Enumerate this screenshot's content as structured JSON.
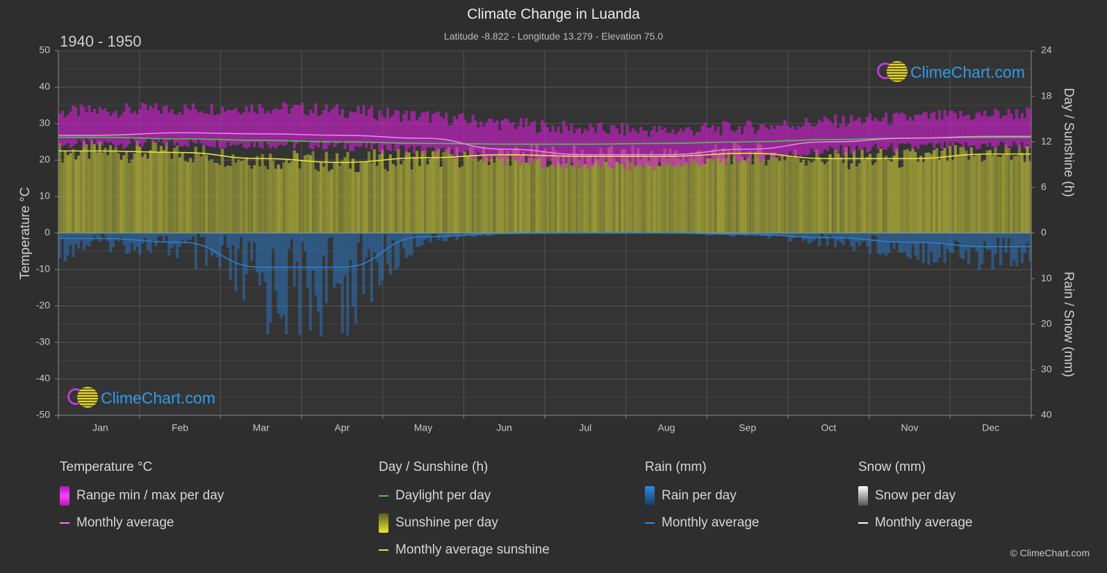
{
  "header": {
    "title": "Climate Change in Luanda",
    "subtitle": "Latitude -8.822 - Longitude 13.279 - Elevation 75.0",
    "period": "1940 - 1950"
  },
  "logo": {
    "text": "ClimeChart.com"
  },
  "copyright": "© ClimeChart.com",
  "colors": {
    "background": "#2e2e2e",
    "temp_range": "#d020d0",
    "temp_avg": "#f080f0",
    "daylight": "#44cc44",
    "sunshine_fill": "#a8a838",
    "sunshine_avg": "#e6e632",
    "rain": "#2b7fd4",
    "snow": "#ffffff",
    "brand": "#2f9be8"
  },
  "legend": {
    "temperature": {
      "heading": "Temperature °C",
      "range": "Range min / max per day",
      "avg": "Monthly average"
    },
    "sunshine": {
      "heading": "Day / Sunshine (h)",
      "daylight": "Daylight per day",
      "sunshine": "Sunshine per day",
      "avg": "Monthly average sunshine"
    },
    "rain": {
      "heading": "Rain (mm)",
      "per_day": "Rain per day",
      "avg": "Monthly average"
    },
    "snow": {
      "heading": "Snow (mm)",
      "per_day": "Snow per day",
      "avg": "Monthly average"
    }
  },
  "chart_data": {
    "type": "area",
    "title": "Climate Change in Luanda",
    "categories": [
      "Jan",
      "Feb",
      "Mar",
      "Apr",
      "May",
      "Jun",
      "Jul",
      "Aug",
      "Sep",
      "Oct",
      "Nov",
      "Dec"
    ],
    "axes": {
      "left": {
        "label": "Temperature °C",
        "min": -50,
        "max": 50,
        "ticks": [
          50,
          40,
          30,
          20,
          10,
          0,
          -10,
          -20,
          -30,
          -40,
          -50
        ]
      },
      "right_top": {
        "label": "Day / Sunshine (h)",
        "min": 0,
        "max": 24,
        "ticks": [
          24,
          18,
          12,
          6,
          0
        ]
      },
      "right_bottom": {
        "label": "Rain / Snow (mm)",
        "min": 0,
        "max": 40,
        "ticks": [
          0,
          10,
          20,
          30,
          40
        ]
      }
    },
    "grid": true,
    "series": [
      {
        "name": "Range min / max per day",
        "kind": "band",
        "min": [
          24.5,
          24.8,
          24.5,
          24.0,
          22.8,
          20.0,
          18.5,
          18.5,
          20.5,
          22.5,
          23.5,
          24.0
        ],
        "max": [
          33.5,
          34.0,
          34.5,
          33.5,
          32.0,
          30.0,
          28.5,
          28.0,
          29.0,
          30.5,
          31.5,
          32.5
        ]
      },
      {
        "name": "Monthly average",
        "kind": "temp_avg",
        "values": [
          26.8,
          27.5,
          27.2,
          26.8,
          26.0,
          23.0,
          21.5,
          21.5,
          23.0,
          25.0,
          26.0,
          26.5
        ]
      },
      {
        "name": "Daylight per day",
        "kind": "daylight",
        "values": [
          12.6,
          12.4,
          12.2,
          12.0,
          11.8,
          11.7,
          11.7,
          11.8,
          12.0,
          12.3,
          12.5,
          12.6
        ]
      },
      {
        "name": "Sunshine per day",
        "kind": "sunshine",
        "values": [
          10.8,
          10.6,
          9.8,
          9.3,
          9.9,
          10.3,
          10.1,
          10.1,
          10.5,
          9.8,
          9.8,
          10.4
        ]
      },
      {
        "name": "Monthly average sunshine",
        "kind": "sunshine_avg",
        "values": [
          10.8,
          10.6,
          9.8,
          9.3,
          9.9,
          10.3,
          10.1,
          10.1,
          10.5,
          9.8,
          9.8,
          10.4
        ]
      },
      {
        "name": "Rain monthly average",
        "kind": "rain_avg",
        "values": [
          1.2,
          2.0,
          7.5,
          7.5,
          0.8,
          0.1,
          0.0,
          0.0,
          0.3,
          1.0,
          2.0,
          3.0
        ]
      },
      {
        "name": "Snow monthly average",
        "kind": "snow_avg",
        "values": [
          0,
          0,
          0,
          0,
          0,
          0,
          0,
          0,
          0,
          0,
          0,
          0
        ]
      }
    ]
  }
}
